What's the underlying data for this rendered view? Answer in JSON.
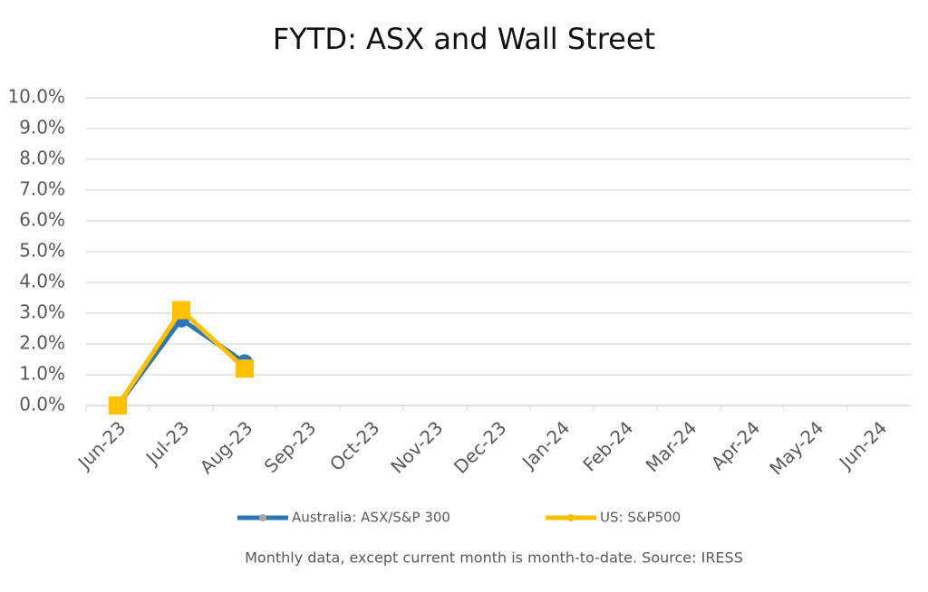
{
  "chart_data": {
    "type": "line",
    "title": "FYTD: ASX and Wall Street",
    "note": "Monthly data, except current month is month-to-date.  Source: IRESS",
    "categories": [
      "Jun-23",
      "Jul-23",
      "Aug-23",
      "Sep-23",
      "Oct-23",
      "Nov-23",
      "Dec-23",
      "Jan-24",
      "Feb-24",
      "Mar-24",
      "Apr-24",
      "May-24",
      "Jun-24"
    ],
    "series": [
      {
        "name": "Australia: ASX/S&P 300",
        "color": "#2e75b6",
        "marker": "circle",
        "values": [
          0,
          2.8,
          1.4,
          null,
          null,
          null,
          null,
          null,
          null,
          null,
          null,
          null,
          null
        ]
      },
      {
        "name": "US: S&P500",
        "color": "#ffc000",
        "marker": "square",
        "values": [
          0,
          3.1,
          1.2,
          null,
          null,
          null,
          null,
          null,
          null,
          null,
          null,
          null,
          null
        ]
      }
    ],
    "ylim": [
      0,
      10
    ],
    "yticks": [
      {
        "value": 0,
        "label": "0.0%"
      },
      {
        "value": 1,
        "label": "1.0%"
      },
      {
        "value": 2,
        "label": "2.0%"
      },
      {
        "value": 3,
        "label": "3.0%"
      },
      {
        "value": 4,
        "label": "4.0%"
      },
      {
        "value": 5,
        "label": "5.0%"
      },
      {
        "value": 6,
        "label": "6.0%"
      },
      {
        "value": 7,
        "label": "7.0%"
      },
      {
        "value": 8,
        "label": "8.0%"
      },
      {
        "value": 9,
        "label": "9.0%"
      },
      {
        "value": 10,
        "label": "10.0%"
      }
    ],
    "grid": true
  }
}
